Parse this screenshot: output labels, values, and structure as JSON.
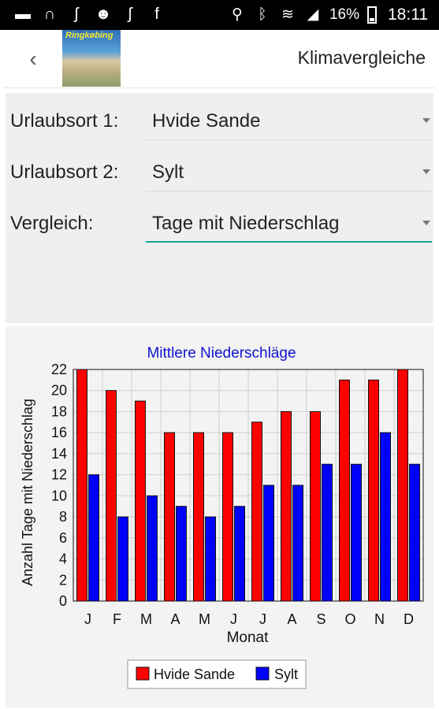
{
  "status_bar": {
    "time": "18:11",
    "battery": "16%",
    "left_icons": [
      "message-icon",
      "headset-icon",
      "footprints-icon",
      "baby-icon",
      "footprints-icon",
      "facebook-icon"
    ],
    "right_icons": [
      "location-icon",
      "bluetooth-icon",
      "wifi-icon",
      "signal-icon"
    ]
  },
  "app_bar": {
    "title": "Klimavergleiche",
    "thumbnail_text": "Ringkøbing"
  },
  "form": {
    "place1_label": "Urlaubsort 1:",
    "place1_value": "Hvide Sande",
    "place2_label": "Urlaubsort 2:",
    "place2_value": "Sylt",
    "compare_label": "Vergleich:",
    "compare_value": "Tage mit Niederschlag",
    "accent_color": "#1aa391"
  },
  "chart_data": {
    "type": "bar",
    "title": "Mittlere Niederschläge",
    "xlabel": "Monat",
    "ylabel": "Anzahl Tage mit Niederschlag",
    "categories": [
      "J",
      "F",
      "M",
      "A",
      "M",
      "J",
      "J",
      "A",
      "S",
      "O",
      "N",
      "D"
    ],
    "series": [
      {
        "name": "Hvide Sande",
        "color": "#ff0000",
        "values": [
          22,
          20,
          19,
          16,
          16,
          16,
          17,
          18,
          18,
          21,
          21,
          22
        ]
      },
      {
        "name": "Sylt",
        "color": "#0000ff",
        "values": [
          12,
          8,
          10,
          9,
          8,
          9,
          11,
          11,
          13,
          13,
          16,
          13
        ]
      }
    ],
    "ylim": [
      0,
      22
    ],
    "yticks": [
      0,
      2,
      4,
      6,
      8,
      10,
      12,
      14,
      16,
      18,
      20,
      22
    ],
    "grid": true,
    "legend": "bottom"
  }
}
